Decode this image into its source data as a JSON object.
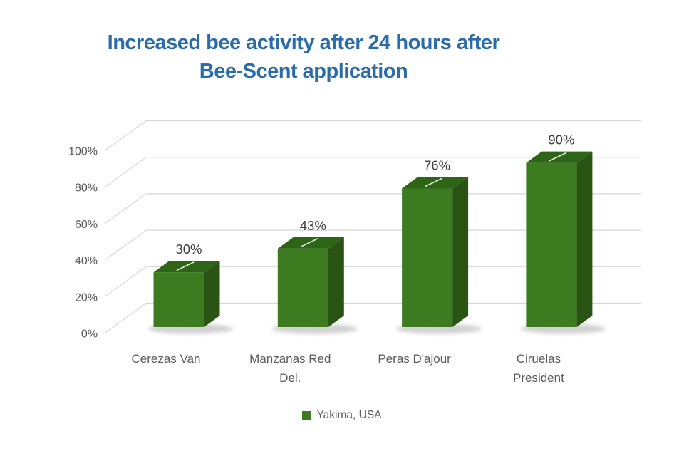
{
  "title": {
    "line1": "Increased bee activity after 24 hours after",
    "line2": "Bee-Scent application"
  },
  "legend": {
    "label": "Yakima, USA"
  },
  "chart_data": {
    "type": "bar",
    "variant": "3d-clustered-column",
    "title": "Increased bee activity after 24 hours after Bee-Scent application",
    "categories": [
      "Cerezas Van",
      "Manzanas Red\nDel.",
      "Peras D'ajour",
      "Ciruelas\nPresident"
    ],
    "series": [
      {
        "name": "Yakima, USA",
        "values": [
          30,
          43,
          76,
          90
        ]
      }
    ],
    "data_labels": [
      "30%",
      "43%",
      "76%",
      "90%"
    ],
    "y_ticks": [
      "0%",
      "20%",
      "40%",
      "60%",
      "80%",
      "100%"
    ],
    "ylim": [
      0,
      100
    ],
    "grid": true,
    "legend_position": "bottom",
    "colors": {
      "bar_front": "#3C7B20",
      "bar_top": "#2E6415",
      "bar_side": "#2A5413",
      "gridline": "#D6D6D6",
      "axis_text": "#595959",
      "data_label_text": "#3F3F3F",
      "title_text": "#2B6CA8",
      "legend_text": "#595959",
      "background": "#FFFFFF",
      "shadow": "#9C9C9C"
    }
  }
}
